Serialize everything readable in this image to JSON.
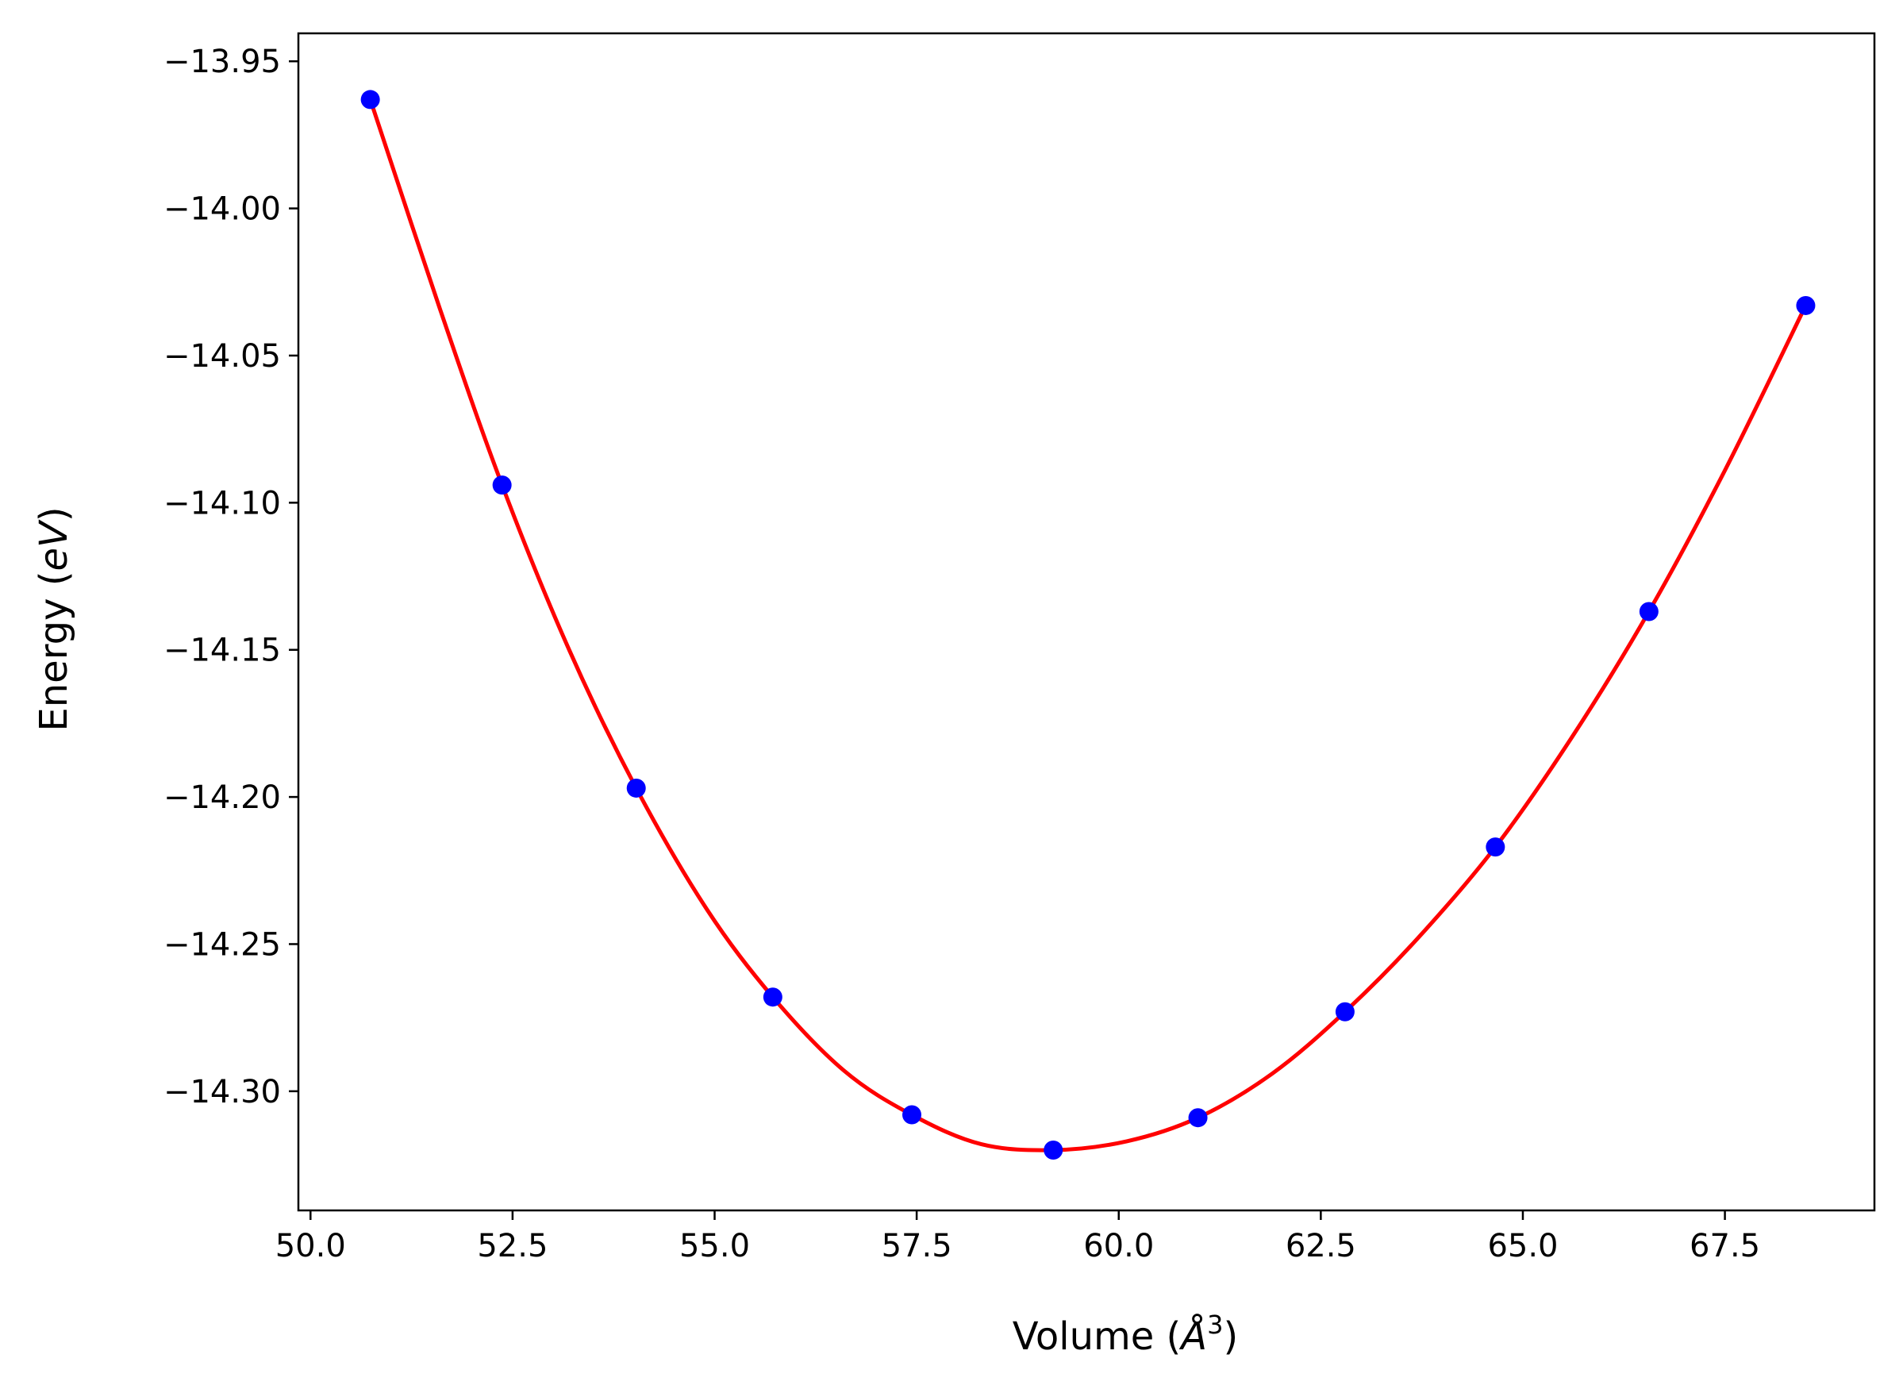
{
  "chart_data": {
    "type": "scatter",
    "title": "",
    "xlabel": {
      "prefix": "Volume (",
      "italic": "Å",
      "sup": "3",
      "suffix": ")"
    },
    "ylabel": {
      "prefix": "Energy (",
      "italic": "eV",
      "suffix": ")"
    },
    "xlim": [
      49.85,
      69.35
    ],
    "ylim": [
      -14.3405,
      -13.9405
    ],
    "x_ticks": [
      50.0,
      52.5,
      55.0,
      57.5,
      60.0,
      62.5,
      65.0,
      67.5
    ],
    "x_tick_labels": [
      "50.0",
      "52.5",
      "55.0",
      "57.5",
      "60.0",
      "62.5",
      "65.0",
      "67.5"
    ],
    "y_ticks": [
      -13.95,
      -14.0,
      -14.05,
      -14.1,
      -14.15,
      -14.2,
      -14.25,
      -14.3
    ],
    "y_tick_labels": [
      "−13.95",
      "−14.00",
      "−14.05",
      "−14.10",
      "−14.15",
      "−14.20",
      "−14.25",
      "−14.30"
    ],
    "grid": false,
    "series": [
      {
        "kind": "points",
        "color": "#0000ff",
        "x": [
          50.74,
          52.37,
          54.03,
          55.72,
          57.44,
          59.19,
          60.98,
          62.8,
          64.66,
          66.56,
          68.5
        ],
        "y": [
          -13.963,
          -14.094,
          -14.197,
          -14.268,
          -14.308,
          -14.32,
          -14.309,
          -14.273,
          -14.217,
          -14.137,
          -14.033
        ]
      },
      {
        "kind": "fit-curve",
        "color": "#ff0000",
        "x": [
          50.74,
          51.6,
          52.37,
          53.2,
          54.03,
          54.9,
          55.72,
          56.6,
          57.44,
          58.3,
          59.19,
          60.1,
          60.98,
          61.9,
          62.8,
          63.7,
          64.66,
          65.6,
          66.56,
          67.5,
          68.5
        ],
        "y": [
          -13.963,
          -14.034,
          -14.094,
          -14.15,
          -14.197,
          -14.238,
          -14.268,
          -14.293,
          -14.308,
          -14.318,
          -14.32,
          -14.317,
          -14.309,
          -14.294,
          -14.273,
          -14.248,
          -14.217,
          -14.18,
          -14.137,
          -14.089,
          -14.033
        ]
      }
    ],
    "colors": {
      "axes": "#000000",
      "background": "#ffffff"
    }
  }
}
